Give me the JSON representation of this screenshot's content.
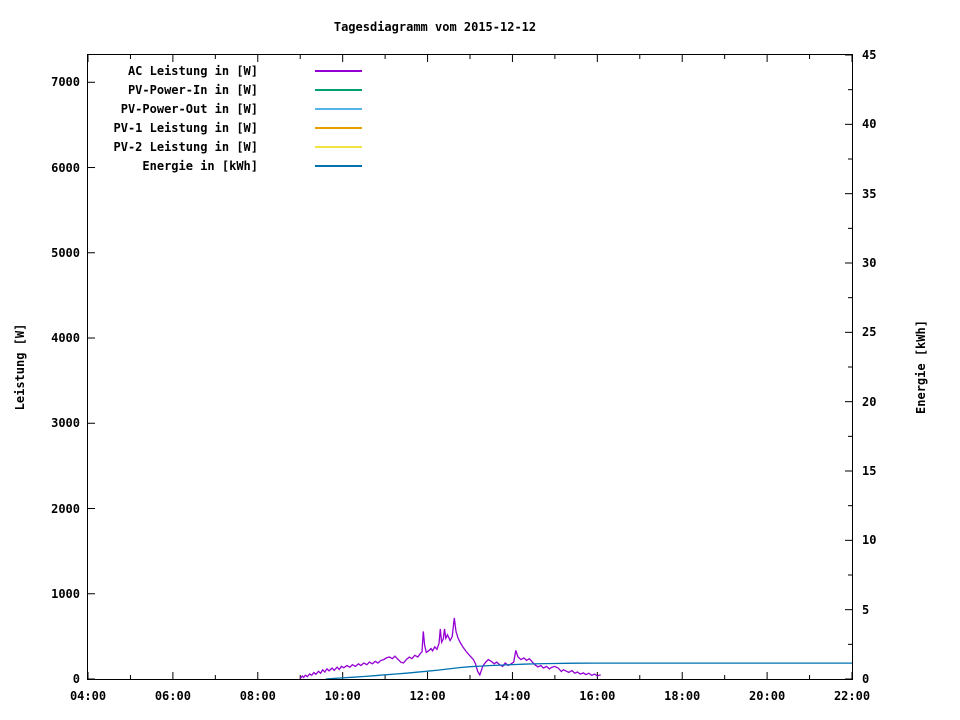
{
  "chart_data": {
    "type": "line",
    "title": "Tagesdiagramm vom 2015-12-12",
    "legend_position": "top-left-inside",
    "grid": false,
    "background": "#ffffff",
    "border_color": "#000000",
    "axes": {
      "x": {
        "min_hour": 4,
        "max_hour": 22,
        "major": [
          {
            "h": 4,
            "label": "04:00"
          },
          {
            "h": 6,
            "label": "06:00"
          },
          {
            "h": 8,
            "label": "08:00"
          },
          {
            "h": 10,
            "label": "10:00"
          },
          {
            "h": 12,
            "label": "12:00"
          },
          {
            "h": 14,
            "label": "14:00"
          },
          {
            "h": 16,
            "label": "16:00"
          },
          {
            "h": 18,
            "label": "18:00"
          },
          {
            "h": 20,
            "label": "20:00"
          },
          {
            "h": 22,
            "label": "22:00"
          }
        ],
        "minor_hours": [
          5,
          7,
          9,
          11,
          13,
          15,
          17,
          19,
          21
        ]
      },
      "left": {
        "title": "Leistung [W]",
        "min": 0,
        "max": 7320,
        "ticks": [
          {
            "v": 0,
            "label": "0"
          },
          {
            "v": 1000,
            "label": "1000"
          },
          {
            "v": 2000,
            "label": "2000"
          },
          {
            "v": 3000,
            "label": "3000"
          },
          {
            "v": 4000,
            "label": "4000"
          },
          {
            "v": 5000,
            "label": "5000"
          },
          {
            "v": 6000,
            "label": "6000"
          },
          {
            "v": 7000,
            "label": "7000"
          }
        ]
      },
      "right": {
        "title": "Energie [kWh]",
        "min": 0,
        "max": 45,
        "ticks": [
          {
            "v": 0,
            "label": "0"
          },
          {
            "v": 5,
            "label": "5"
          },
          {
            "v": 10,
            "label": "10"
          },
          {
            "v": 15,
            "label": "15"
          },
          {
            "v": 20,
            "label": "20"
          },
          {
            "v": 25,
            "label": "25"
          },
          {
            "v": 30,
            "label": "30"
          },
          {
            "v": 35,
            "label": "35"
          },
          {
            "v": 40,
            "label": "40"
          },
          {
            "v": 45,
            "label": "45"
          }
        ],
        "minors": [
          2.5,
          7.5,
          12.5,
          17.5,
          22.5,
          27.5,
          32.5,
          37.5,
          42.5
        ]
      }
    },
    "series": [
      {
        "name": "AC Leistung in [W]",
        "color": "#9400d3",
        "axis": "left",
        "points": [
          [
            9.0,
            5
          ],
          [
            9.05,
            35
          ],
          [
            9.08,
            18
          ],
          [
            9.12,
            45
          ],
          [
            9.17,
            28
          ],
          [
            9.22,
            60
          ],
          [
            9.27,
            42
          ],
          [
            9.32,
            75
          ],
          [
            9.37,
            55
          ],
          [
            9.43,
            90
          ],
          [
            9.48,
            68
          ],
          [
            9.53,
            108
          ],
          [
            9.58,
            82
          ],
          [
            9.63,
            118
          ],
          [
            9.68,
            95
          ],
          [
            9.75,
            128
          ],
          [
            9.8,
            102
          ],
          [
            9.87,
            138
          ],
          [
            9.92,
            112
          ],
          [
            9.97,
            148
          ],
          [
            10.03,
            132
          ],
          [
            10.1,
            158
          ],
          [
            10.17,
            138
          ],
          [
            10.23,
            168
          ],
          [
            10.3,
            148
          ],
          [
            10.37,
            178
          ],
          [
            10.43,
            158
          ],
          [
            10.5,
            188
          ],
          [
            10.57,
            168
          ],
          [
            10.63,
            198
          ],
          [
            10.7,
            178
          ],
          [
            10.77,
            208
          ],
          [
            10.83,
            188
          ],
          [
            10.9,
            218
          ],
          [
            10.97,
            228
          ],
          [
            11.03,
            248
          ],
          [
            11.1,
            258
          ],
          [
            11.17,
            238
          ],
          [
            11.23,
            268
          ],
          [
            11.3,
            232
          ],
          [
            11.37,
            198
          ],
          [
            11.43,
            188
          ],
          [
            11.5,
            228
          ],
          [
            11.57,
            258
          ],
          [
            11.63,
            238
          ],
          [
            11.7,
            278
          ],
          [
            11.77,
            258
          ],
          [
            11.83,
            298
          ],
          [
            11.87,
            318
          ],
          [
            11.9,
            558
          ],
          [
            11.93,
            398
          ],
          [
            11.97,
            312
          ],
          [
            12.03,
            332
          ],
          [
            12.08,
            358
          ],
          [
            12.12,
            330
          ],
          [
            12.17,
            378
          ],
          [
            12.22,
            348
          ],
          [
            12.27,
            418
          ],
          [
            12.3,
            588
          ],
          [
            12.33,
            432
          ],
          [
            12.37,
            468
          ],
          [
            12.4,
            588
          ],
          [
            12.43,
            478
          ],
          [
            12.47,
            518
          ],
          [
            12.53,
            452
          ],
          [
            12.58,
            498
          ],
          [
            12.63,
            715
          ],
          [
            12.67,
            558
          ],
          [
            12.72,
            478
          ],
          [
            12.78,
            418
          ],
          [
            12.83,
            378
          ],
          [
            12.9,
            328
          ],
          [
            12.97,
            288
          ],
          [
            13.03,
            255
          ],
          [
            13.08,
            228
          ],
          [
            13.13,
            178
          ],
          [
            13.18,
            92
          ],
          [
            13.23,
            48
          ],
          [
            13.3,
            148
          ],
          [
            13.37,
            198
          ],
          [
            13.43,
            228
          ],
          [
            13.5,
            208
          ],
          [
            13.57,
            178
          ],
          [
            13.63,
            198
          ],
          [
            13.7,
            168
          ],
          [
            13.77,
            148
          ],
          [
            13.83,
            188
          ],
          [
            13.9,
            158
          ],
          [
            13.97,
            178
          ],
          [
            14.03,
            198
          ],
          [
            14.08,
            335
          ],
          [
            14.13,
            258
          ],
          [
            14.2,
            228
          ],
          [
            14.27,
            248
          ],
          [
            14.33,
            218
          ],
          [
            14.4,
            238
          ],
          [
            14.47,
            198
          ],
          [
            14.53,
            168
          ],
          [
            14.6,
            142
          ],
          [
            14.67,
            158
          ],
          [
            14.73,
            128
          ],
          [
            14.8,
            148
          ],
          [
            14.87,
            118
          ],
          [
            14.93,
            138
          ],
          [
            15.0,
            148
          ],
          [
            15.08,
            128
          ],
          [
            15.15,
            88
          ],
          [
            15.2,
            108
          ],
          [
            15.27,
            92
          ],
          [
            15.33,
            78
          ],
          [
            15.4,
            98
          ],
          [
            15.47,
            68
          ],
          [
            15.53,
            82
          ],
          [
            15.6,
            58
          ],
          [
            15.67,
            72
          ],
          [
            15.73,
            52
          ],
          [
            15.8,
            68
          ],
          [
            15.87,
            42
          ],
          [
            15.93,
            58
          ],
          [
            16.0,
            38
          ],
          [
            16.08,
            48
          ]
        ]
      },
      {
        "name": "PV-Power-In in [W]",
        "color": "#009e73",
        "axis": "left",
        "points": []
      },
      {
        "name": "PV-Power-Out in [W]",
        "color": "#56b4e9",
        "axis": "left",
        "points": []
      },
      {
        "name": "PV-1 Leistung in [W]",
        "color": "#e69f00",
        "axis": "left",
        "points": []
      },
      {
        "name": "PV-2 Leistung in [W]",
        "color": "#f0e442",
        "axis": "left",
        "points": []
      },
      {
        "name": "Energie in [kWh]",
        "color": "#0072b2",
        "axis": "right",
        "points": [
          [
            9.6,
            0.0
          ],
          [
            9.8,
            0.04
          ],
          [
            10.0,
            0.08
          ],
          [
            10.25,
            0.13
          ],
          [
            10.5,
            0.18
          ],
          [
            10.75,
            0.24
          ],
          [
            11.0,
            0.3
          ],
          [
            11.25,
            0.36
          ],
          [
            11.5,
            0.42
          ],
          [
            11.75,
            0.49
          ],
          [
            12.0,
            0.56
          ],
          [
            12.25,
            0.64
          ],
          [
            12.5,
            0.73
          ],
          [
            12.75,
            0.82
          ],
          [
            13.0,
            0.89
          ],
          [
            13.25,
            0.93
          ],
          [
            13.5,
            0.97
          ],
          [
            13.75,
            1.0
          ],
          [
            14.0,
            1.04
          ],
          [
            14.25,
            1.07
          ],
          [
            14.5,
            1.09
          ],
          [
            14.75,
            1.11
          ],
          [
            15.0,
            1.12
          ],
          [
            15.25,
            1.13
          ],
          [
            15.5,
            1.14
          ],
          [
            16.0,
            1.15
          ],
          [
            16.5,
            1.15
          ],
          [
            22.0,
            1.15
          ]
        ]
      }
    ]
  }
}
